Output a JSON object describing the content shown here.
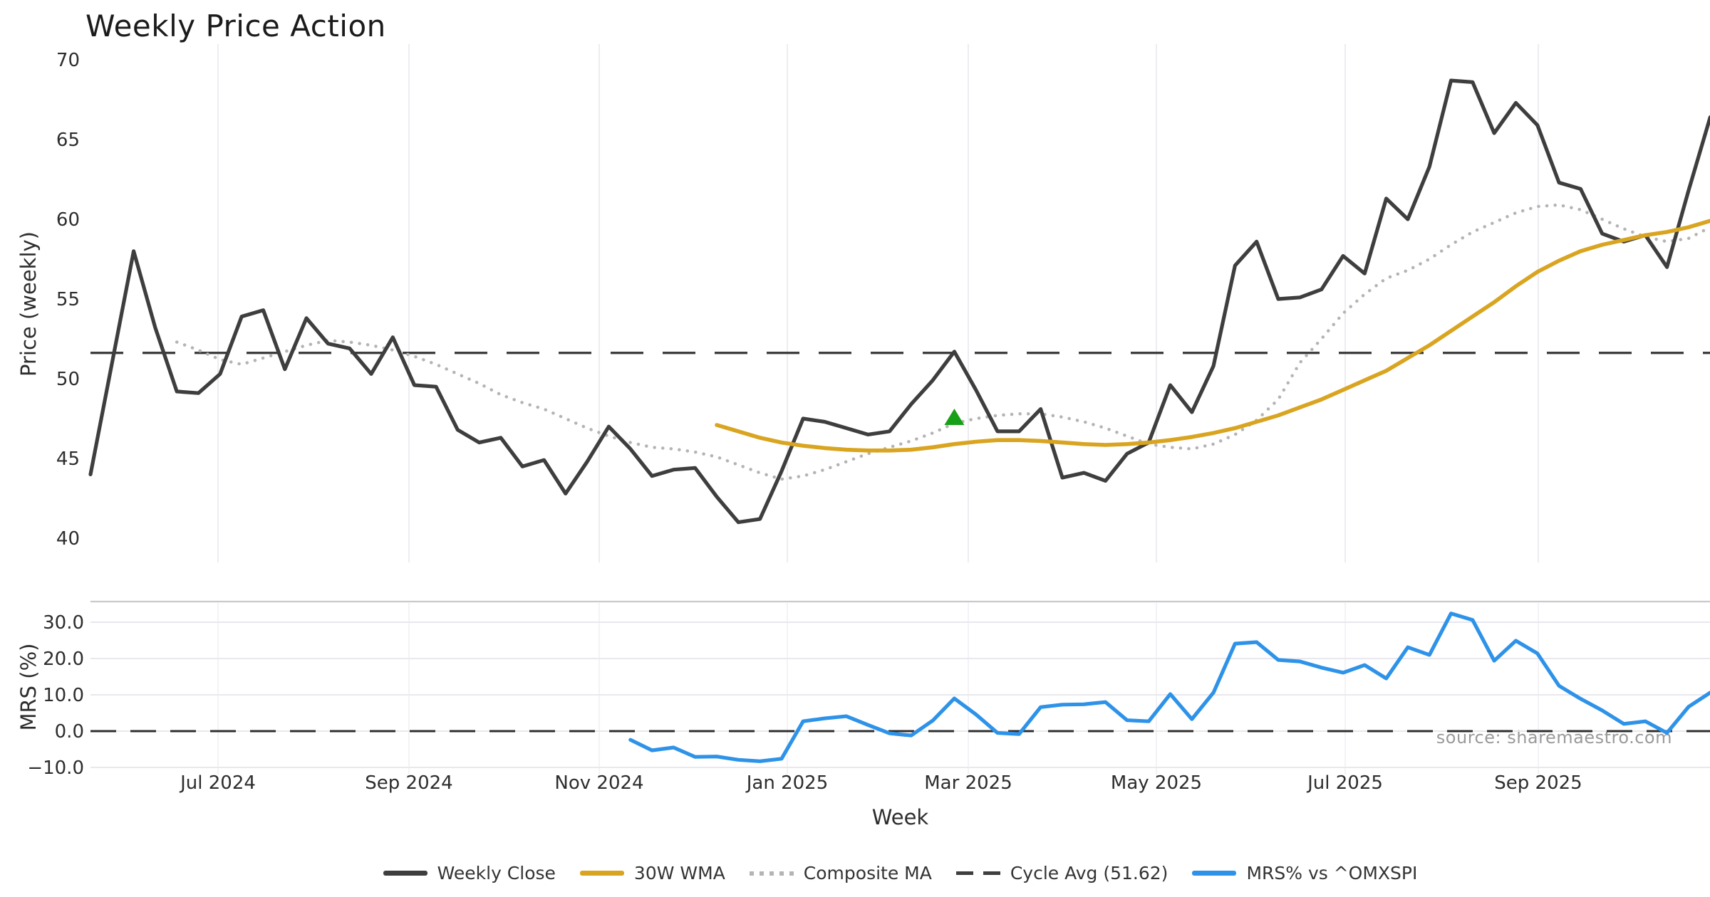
{
  "title": "Weekly Price Action",
  "source": "source: sharemaestro.com",
  "x_axis": {
    "label": "Week",
    "ticks": [
      "Jul 2024",
      "Sep 2024",
      "Nov 2024",
      "Jan 2025",
      "Mar 2025",
      "May 2025",
      "Jul 2025",
      "Sep 2025"
    ]
  },
  "legend": [
    {
      "label": "Weekly Close",
      "color": "#3e3e3e",
      "style": "solid"
    },
    {
      "label": "30W WMA",
      "color": "#d9a521",
      "style": "solid"
    },
    {
      "label": "Composite MA",
      "color": "#b4b4b4",
      "style": "dotted"
    },
    {
      "label": "Cycle Avg (51.62)",
      "color": "#3e3e3e",
      "style": "dashed"
    },
    {
      "label": "MRS% vs ^OMXSPI",
      "color": "#2e93e8",
      "style": "solid"
    }
  ],
  "colors": {
    "weekly_close": "#3e3e3e",
    "wma": "#d9a521",
    "composite": "#b4b4b4",
    "cycle_avg": "#3e3e3e",
    "mrs": "#2e93e8",
    "marker_green": "#17a017",
    "grid": "#ededf2",
    "panel_border": "#c9c9cf"
  },
  "chart_data": {
    "type": "line",
    "title": "Weekly Price Action",
    "xlabel": "Week",
    "x_tick_labels": [
      "Jul 2024",
      "Sep 2024",
      "Nov 2024",
      "Jan 2025",
      "Mar 2025",
      "May 2025",
      "Jul 2025",
      "Sep 2025"
    ],
    "x_unit": "weeks (index 0 = first plotted week, late May 2024; ~4.33 weeks per month tick)",
    "panels": [
      {
        "ylabel": "Price (weekly)",
        "ylim": [
          38.6,
          71.6
        ],
        "yticks": [
          70,
          65,
          60,
          55,
          50,
          45,
          40
        ],
        "grid": "vertical-only",
        "legend_position": "below-figure",
        "cycle_avg_line": {
          "name": "Cycle Avg (51.62)",
          "value": 51.62,
          "style": "dashed"
        },
        "marker": {
          "type": "triangle-up",
          "color": "#17a017",
          "week": 40,
          "value": 47.5
        },
        "series": [
          {
            "name": "Weekly Close",
            "style": "solid",
            "color": "#3e3e3e",
            "start_week": 0,
            "values": [
              44.0,
              51.0,
              58.0,
              53.2,
              49.2,
              49.1,
              50.3,
              53.9,
              54.3,
              50.6,
              53.8,
              52.2,
              51.9,
              50.3,
              52.6,
              49.6,
              49.5,
              46.8,
              46.0,
              46.3,
              44.5,
              44.9,
              42.8,
              44.8,
              47.0,
              45.6,
              43.9,
              44.3,
              44.4,
              42.6,
              41.0,
              41.2,
              44.2,
              47.5,
              47.3,
              46.9,
              46.5,
              46.7,
              48.4,
              49.9,
              51.7,
              49.3,
              46.7,
              46.7,
              48.1,
              43.8,
              44.1,
              43.6,
              45.3,
              46.0,
              49.6,
              47.9,
              50.8,
              57.1,
              58.6,
              55.0,
              55.1,
              55.6,
              57.7,
              56.6,
              61.3,
              60.0,
              63.3,
              68.7,
              68.6,
              65.4,
              67.3,
              65.9,
              62.3,
              61.9,
              59.1,
              58.6,
              59.0,
              57.0,
              61.8,
              66.4
            ]
          },
          {
            "name": "30W WMA",
            "style": "solid",
            "color": "#d9a521",
            "start_week": 29,
            "values": [
              47.1,
              46.7,
              46.3,
              46.0,
              45.8,
              45.65,
              45.55,
              45.5,
              45.5,
              45.55,
              45.7,
              45.9,
              46.05,
              46.15,
              46.15,
              46.1,
              46.0,
              45.9,
              45.85,
              45.9,
              46.0,
              46.15,
              46.35,
              46.6,
              46.9,
              47.3,
              47.7,
              48.2,
              48.7,
              49.3,
              49.9,
              50.5,
              51.3,
              52.1,
              53.0,
              53.9,
              54.8,
              55.8,
              56.7,
              57.4,
              58.0,
              58.4,
              58.7,
              59.0,
              59.2,
              59.5,
              59.9
            ]
          },
          {
            "name": "Composite MA",
            "style": "dotted",
            "color": "#b4b4b4",
            "start_week": 4,
            "values": [
              52.3,
              51.8,
              51.2,
              50.9,
              51.3,
              51.7,
              52.1,
              52.4,
              52.3,
              52.1,
              51.8,
              51.4,
              50.9,
              50.3,
              49.7,
              49.0,
              48.5,
              48.1,
              47.5,
              46.9,
              46.4,
              46.0,
              45.7,
              45.6,
              45.4,
              45.1,
              44.6,
              44.1,
              43.7,
              43.9,
              44.3,
              44.8,
              45.3,
              45.7,
              46.1,
              46.6,
              47.2,
              47.5,
              47.7,
              47.8,
              47.8,
              47.6,
              47.3,
              46.9,
              46.4,
              45.9,
              45.7,
              45.6,
              45.9,
              46.5,
              47.4,
              48.7,
              51.0,
              52.5,
              54.1,
              55.3,
              56.3,
              56.8,
              57.5,
              58.4,
              59.2,
              59.8,
              60.4,
              60.8,
              60.9,
              60.6,
              60.0,
              59.4,
              58.9,
              58.6,
              58.8,
              59.5
            ]
          }
        ]
      },
      {
        "ylabel": "MRS (%)",
        "ylim": [
          -12.4,
          35.7
        ],
        "yticks": [
          30.0,
          20.0,
          10.0,
          0.0,
          -10.0
        ],
        "ytick_labels": [
          "30.0",
          "20.0",
          "10.0",
          "0.0",
          "−10.0"
        ],
        "grid": "horizontal",
        "zero_line": {
          "value": 0.0,
          "style": "dashed"
        },
        "series": [
          {
            "name": "MRS% vs ^OMXSPI",
            "style": "solid",
            "color": "#2e93e8",
            "start_week": 25,
            "values": [
              -2.4,
              -5.3,
              -4.5,
              -7.1,
              -7.0,
              -7.9,
              -8.3,
              -7.6,
              2.7,
              3.5,
              4.1,
              1.7,
              -0.6,
              -1.2,
              2.9,
              9.0,
              4.6,
              -0.5,
              -0.8,
              6.6,
              7.3,
              7.4,
              8.0,
              3.0,
              2.7,
              10.2,
              3.3,
              10.6,
              24.1,
              24.5,
              19.6,
              19.2,
              17.5,
              16.1,
              18.2,
              14.5,
              23.1,
              21.0,
              32.4,
              30.6,
              19.4,
              24.9,
              21.4,
              12.5,
              8.9,
              5.7,
              2.0,
              2.7,
              -0.5,
              6.7,
              10.6
            ]
          }
        ]
      }
    ]
  }
}
